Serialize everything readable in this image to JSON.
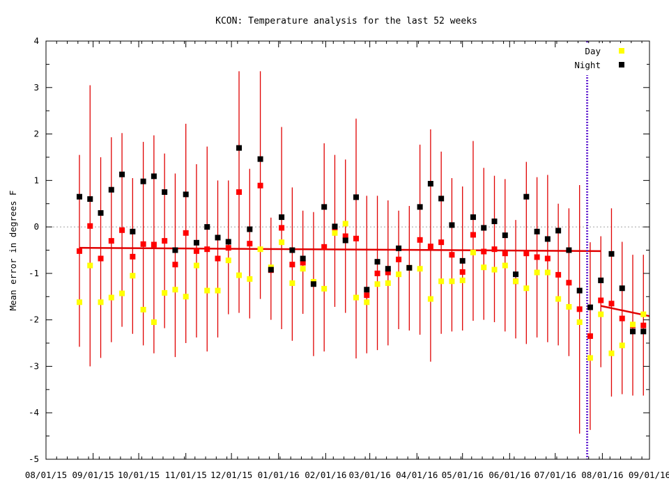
{
  "chart_data": {
    "type": "scatter",
    "title": "KCON: Temperature analysis for the last 52 weeks",
    "xlabel": "",
    "ylabel": "Mean error in degrees F",
    "ylim": [
      -5,
      4
    ],
    "xlim": [
      "2015-08-01",
      "2016-09-01"
    ],
    "y_ticks": [
      "-5",
      "-4",
      "-3",
      "-2",
      "-1",
      "0",
      "1",
      "2",
      "3",
      "4"
    ],
    "x_ticks": [
      "08/01/15",
      "09/01/15",
      "10/01/15",
      "11/01/15",
      "12/01/15",
      "01/01/16",
      "02/01/16",
      "03/01/16",
      "04/01/16",
      "05/01/16",
      "06/01/16",
      "07/01/16",
      "08/01/16",
      "09/01/16"
    ],
    "zero_line": 0,
    "vertical_marker": "2016-07-22",
    "legend_position": "top-right",
    "grid": false,
    "colors": {
      "day": "#ffff00",
      "night": "#000000",
      "overall": "#ff0000",
      "trend": "#e00000",
      "marker": "#6a2bd3"
    },
    "series": [
      {
        "name": "Day",
        "x": [
          "2015-08-23",
          "2015-08-30",
          "2015-09-06",
          "2015-09-13",
          "2015-09-20",
          "2015-09-27",
          "2015-10-04",
          "2015-10-11",
          "2015-10-18",
          "2015-10-25",
          "2015-11-01",
          "2015-11-08",
          "2015-11-15",
          "2015-11-22",
          "2015-11-29",
          "2015-12-06",
          "2015-12-13",
          "2015-12-20",
          "2015-12-27",
          "2016-01-03",
          "2016-01-10",
          "2016-01-17",
          "2016-01-24",
          "2016-01-31",
          "2016-02-07",
          "2016-02-14",
          "2016-02-21",
          "2016-02-28",
          "2016-03-06",
          "2016-03-13",
          "2016-03-20",
          "2016-03-27",
          "2016-04-03",
          "2016-04-10",
          "2016-04-17",
          "2016-04-24",
          "2016-05-01",
          "2016-05-08",
          "2016-05-15",
          "2016-05-22",
          "2016-05-29",
          "2016-06-05",
          "2016-06-12",
          "2016-06-19",
          "2016-06-26",
          "2016-07-03",
          "2016-07-10",
          "2016-07-17",
          "2016-07-24",
          "2016-07-31",
          "2016-08-07",
          "2016-08-14",
          "2016-08-21",
          "2016-08-28"
        ],
        "values": [
          -1.62,
          -0.83,
          -1.62,
          -1.52,
          -1.43,
          -1.05,
          -1.78,
          -2.05,
          -1.42,
          -1.35,
          -1.5,
          -0.83,
          -1.37,
          -1.37,
          -0.72,
          -1.04,
          -1.12,
          -0.48,
          -0.87,
          -0.33,
          -1.21,
          -0.9,
          -1.18,
          -1.33,
          -0.13,
          0.07,
          -1.52,
          -1.62,
          -1.23,
          -1.21,
          -1.02,
          -0.88,
          -0.9,
          -1.55,
          -1.17,
          -1.17,
          -1.15,
          -0.55,
          -0.87,
          -0.92,
          -0.83,
          -1.17,
          -1.32,
          -0.98,
          -0.98,
          -1.55,
          -1.72,
          -2.05,
          -2.82,
          -1.88,
          -2.72,
          -2.55,
          -2.1,
          -1.88
        ]
      },
      {
        "name": "Night",
        "x": [
          "2015-08-23",
          "2015-08-30",
          "2015-09-06",
          "2015-09-13",
          "2015-09-20",
          "2015-09-27",
          "2015-10-04",
          "2015-10-11",
          "2015-10-18",
          "2015-10-25",
          "2015-11-01",
          "2015-11-08",
          "2015-11-15",
          "2015-11-22",
          "2015-11-29",
          "2015-12-06",
          "2015-12-13",
          "2015-12-20",
          "2015-12-27",
          "2016-01-03",
          "2016-01-10",
          "2016-01-17",
          "2016-01-24",
          "2016-01-31",
          "2016-02-07",
          "2016-02-14",
          "2016-02-21",
          "2016-02-28",
          "2016-03-06",
          "2016-03-13",
          "2016-03-20",
          "2016-03-27",
          "2016-04-03",
          "2016-04-10",
          "2016-04-17",
          "2016-04-24",
          "2016-05-01",
          "2016-05-08",
          "2016-05-15",
          "2016-05-22",
          "2016-05-29",
          "2016-06-05",
          "2016-06-12",
          "2016-06-19",
          "2016-06-26",
          "2016-07-03",
          "2016-07-10",
          "2016-07-17",
          "2016-07-24",
          "2016-07-31",
          "2016-08-07",
          "2016-08-14",
          "2016-08-21",
          "2016-08-28"
        ],
        "values": [
          0.65,
          0.6,
          0.3,
          0.8,
          1.13,
          -0.1,
          0.98,
          1.09,
          0.75,
          -0.5,
          0.7,
          -0.34,
          0.0,
          -0.23,
          -0.32,
          1.7,
          -0.05,
          1.46,
          -0.92,
          0.21,
          -0.5,
          -0.68,
          -1.23,
          0.43,
          0.01,
          -0.29,
          0.64,
          -1.35,
          -0.75,
          -0.9,
          -0.46,
          -0.88,
          0.43,
          0.93,
          0.61,
          0.04,
          -0.73,
          0.21,
          -0.02,
          0.12,
          -0.18,
          -1.02,
          0.65,
          -0.1,
          -0.26,
          -0.08,
          -0.5,
          -1.37,
          -1.73,
          -1.15,
          -0.58,
          -1.32,
          -2.25,
          -2.25
        ]
      }
    ],
    "overall": {
      "values": [
        -0.52,
        0.02,
        -0.68,
        -0.3,
        -0.07,
        -0.64,
        -0.37,
        -0.38,
        -0.3,
        -0.81,
        -0.13,
        -0.52,
        -0.48,
        -0.68,
        -0.45,
        0.75,
        -0.36,
        0.89,
        -0.93,
        -0.02,
        -0.81,
        -0.77,
        -1.2,
        -0.43,
        -0.02,
        -0.2,
        -0.25,
        -1.47,
        -1.0,
        -0.98,
        -0.7,
        -0.88,
        -0.28,
        -0.42,
        -0.33,
        -0.6,
        -0.97,
        -0.17,
        -0.53,
        -0.48,
        -0.57,
        -1.17,
        -0.57,
        -0.65,
        -0.68,
        -1.03,
        -1.2,
        -1.77,
        -2.35,
        -1.58,
        -1.65,
        -1.97,
        -2.12,
        -2.12
      ],
      "error_low": [
        -2.58,
        -3.0,
        -2.82,
        -2.48,
        -2.15,
        -2.3,
        -2.55,
        -2.72,
        -2.18,
        -2.8,
        -2.5,
        -2.38,
        -2.68,
        -2.38,
        -1.88,
        -1.85,
        -1.97,
        -1.55,
        -2.0,
        -2.2,
        -2.45,
        -1.87,
        -2.78,
        -2.68,
        -1.72,
        -1.85,
        -2.83,
        -2.72,
        -2.65,
        -2.55,
        -2.2,
        -2.23,
        -2.32,
        -2.9,
        -2.3,
        -2.25,
        -2.23,
        -2.02,
        -2.0,
        -2.05,
        -2.25,
        -2.4,
        -2.52,
        -2.38,
        -2.48,
        -2.55,
        -2.78,
        -4.45,
        -4.37,
        -3.02,
        -3.65,
        -3.6,
        -3.63,
        -3.63
      ],
      "error_high": [
        1.55,
        3.05,
        1.5,
        1.93,
        2.02,
        1.05,
        1.83,
        1.97,
        1.58,
        1.15,
        2.22,
        1.35,
        1.73,
        1.0,
        1.0,
        3.35,
        1.25,
        3.35,
        0.2,
        2.15,
        0.85,
        0.35,
        0.32,
        1.8,
        1.55,
        1.45,
        2.33,
        0.67,
        0.67,
        0.57,
        0.35,
        0.45,
        1.77,
        2.1,
        1.62,
        1.05,
        0.87,
        1.85,
        1.27,
        1.1,
        1.03,
        0.15,
        1.4,
        1.07,
        1.12,
        0.5,
        0.4,
        0.9,
        -0.33,
        -0.2,
        0.4,
        -0.32,
        -0.6,
        -0.6
      ]
    },
    "trends": [
      {
        "from": [
          "2015-08-23",
          -0.45
        ],
        "to": [
          "2016-07-31",
          -0.52
        ]
      },
      {
        "from": [
          "2016-07-31",
          -1.7
        ],
        "to": [
          "2016-09-01",
          -1.92
        ]
      }
    ]
  }
}
